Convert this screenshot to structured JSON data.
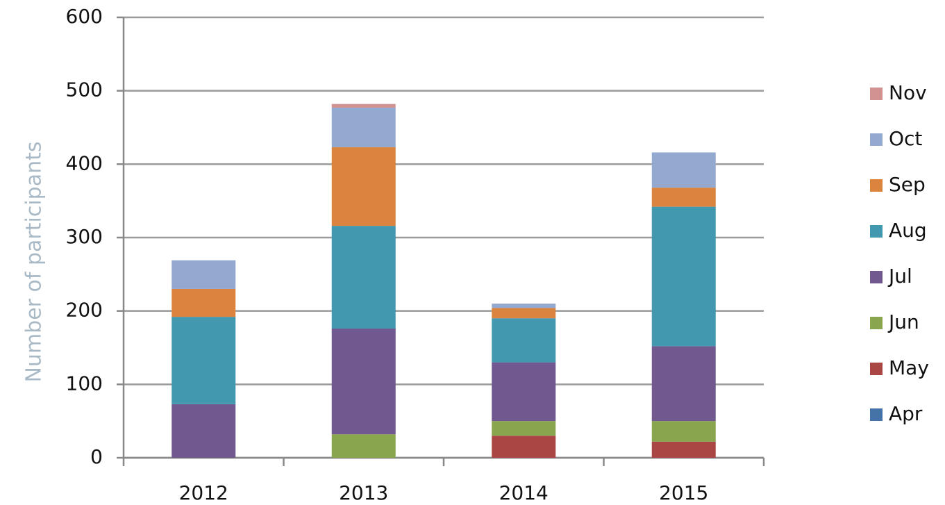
{
  "chart_data": {
    "type": "stacked_bar",
    "y_label": "Number of participants",
    "categories": [
      "2012",
      "2013",
      "2014",
      "2015"
    ],
    "series": [
      {
        "name": "Apr",
        "color": "#4572a7",
        "values": [
          0,
          0,
          0,
          0
        ]
      },
      {
        "name": "May",
        "color": "#aa4643",
        "values": [
          0,
          0,
          30,
          22
        ]
      },
      {
        "name": "Jun",
        "color": "#89a54e",
        "values": [
          0,
          32,
          20,
          28
        ]
      },
      {
        "name": "Jul",
        "color": "#71588f",
        "values": [
          73,
          144,
          80,
          102
        ]
      },
      {
        "name": "Aug",
        "color": "#4198af",
        "values": [
          119,
          140,
          60,
          190
        ]
      },
      {
        "name": "Sep",
        "color": "#db843d",
        "values": [
          38,
          107,
          14,
          26
        ]
      },
      {
        "name": "Oct",
        "color": "#93a9cf",
        "values": [
          39,
          54,
          6,
          48
        ]
      },
      {
        "name": "Nov",
        "color": "#d19392",
        "values": [
          0,
          5,
          0,
          0
        ]
      }
    ],
    "ylim": [
      0,
      600
    ],
    "yticks": [
      0,
      100,
      200,
      300,
      400,
      500,
      600
    ],
    "grid": true
  }
}
